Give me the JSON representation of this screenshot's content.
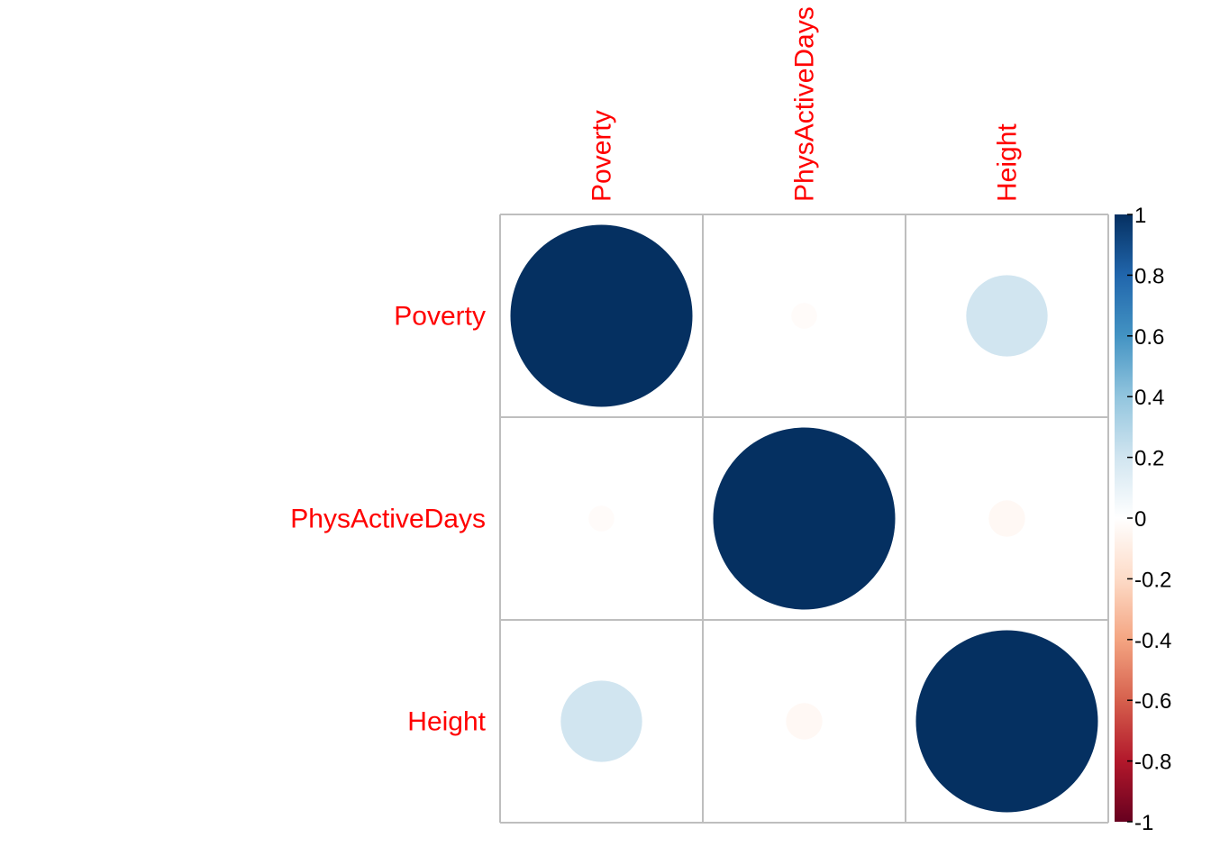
{
  "chart_data": {
    "type": "heatmap",
    "style": "correlation-circle-matrix",
    "variables": [
      "Poverty",
      "PhysActiveDays",
      "Height"
    ],
    "matrix": [
      [
        1.0,
        -0.02,
        0.2
      ],
      [
        -0.02,
        1.0,
        -0.04
      ],
      [
        0.2,
        -0.04,
        1.0
      ]
    ],
    "color_scale": {
      "range": [
        -1,
        1
      ],
      "ticks": [
        "1",
        "0.8",
        "0.6",
        "0.4",
        "0.2",
        "0",
        "-0.2",
        "-0.4",
        "-0.6",
        "-0.8",
        "-1"
      ],
      "stops": [
        {
          "value": -1.0,
          "color": "#67001f"
        },
        {
          "value": -0.8,
          "color": "#b2182b"
        },
        {
          "value": -0.6,
          "color": "#d6604d"
        },
        {
          "value": -0.4,
          "color": "#f4a582"
        },
        {
          "value": -0.2,
          "color": "#fddbc7"
        },
        {
          "value": 0.0,
          "color": "#ffffff"
        },
        {
          "value": 0.2,
          "color": "#d1e5f0"
        },
        {
          "value": 0.4,
          "color": "#92c5de"
        },
        {
          "value": 0.6,
          "color": "#4393c3"
        },
        {
          "value": 0.8,
          "color": "#2166ac"
        },
        {
          "value": 1.0,
          "color": "#053061"
        }
      ]
    },
    "label_color": "#ff0000",
    "grid_color": "#bebebe",
    "legend": "right"
  }
}
